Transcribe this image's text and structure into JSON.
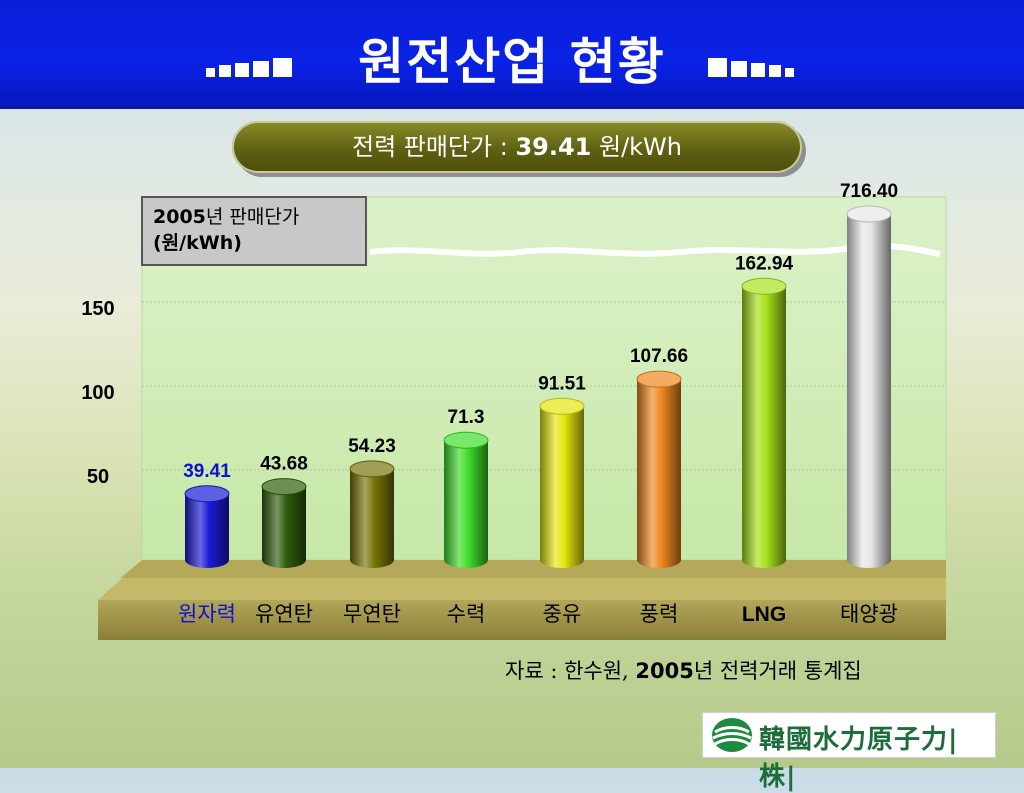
{
  "header": {
    "title": "원전산업 현황"
  },
  "subtitle": {
    "prefix": "전력 판매단가 : ",
    "value": "39.41",
    "unit": " 원/kWh"
  },
  "legend_box": {
    "line1_year": "2005",
    "line1_rest": "년 판매단가",
    "line2": "(원/kWh)"
  },
  "source": {
    "prefix": "자료 : 한수원, ",
    "year": "2005",
    "rest": "년 전력거래 통계집"
  },
  "logo": {
    "text": "韓國水力原子力|株|"
  },
  "chart_data": {
    "type": "bar",
    "categories": [
      "원자력",
      "유연탄",
      "무연탄",
      "수력",
      "중유",
      "풍력",
      "LNG",
      "태양광"
    ],
    "values": [
      39.41,
      43.68,
      54.23,
      71.3,
      91.51,
      107.66,
      162.94,
      716.4
    ],
    "value_labels": [
      "39.41",
      "43.68",
      "54.23",
      "71.3",
      "91.51",
      "107.66",
      "162.94",
      "716.40"
    ],
    "y_ticks": [
      50,
      100,
      150
    ],
    "axis_break": true,
    "bar_colors": [
      "#1a1ad6",
      "#2f5e0c",
      "#77740a",
      "#3fdd2a",
      "#e5e60f",
      "#f0891f",
      "#a8e21a",
      "#e6e6e6"
    ],
    "highlight_category_color": "#1010d0"
  }
}
